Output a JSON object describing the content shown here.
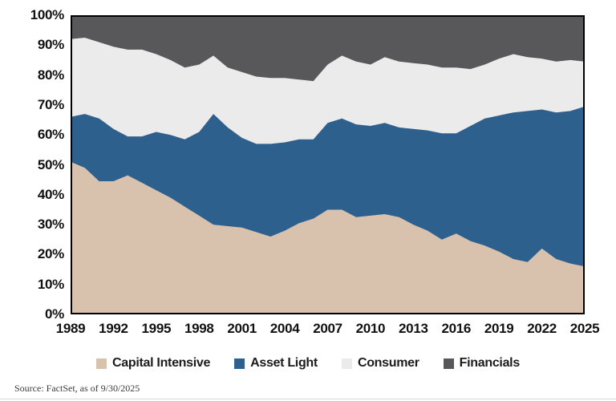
{
  "source_note": "Source: FactSet, as of 9/30/2025",
  "colors": {
    "capital_intensive": "#d8c2ae",
    "asset_light": "#2e608e",
    "consumer": "#ebebeb",
    "financials": "#58585a",
    "plot_border": "#000000",
    "axis_text": "#111111"
  },
  "legend": {
    "items": [
      {
        "label": "Capital Intensive",
        "color": "#d8c2ae"
      },
      {
        "label": "Asset Light",
        "color": "#2e608e"
      },
      {
        "label": "Consumer",
        "color": "#ebebeb"
      },
      {
        "label": "Financials",
        "color": "#58585a"
      }
    ]
  },
  "axis": {
    "y_tick_labels": [
      "0%",
      "10%",
      "20%",
      "30%",
      "40%",
      "50%",
      "60%",
      "70%",
      "80%",
      "90%",
      "100%"
    ],
    "x_tick_labels": [
      "1989",
      "1992",
      "1995",
      "1998",
      "2001",
      "2004",
      "2007",
      "2010",
      "2013",
      "2016",
      "2019",
      "2022",
      "2025"
    ]
  },
  "chart_data": {
    "type": "area",
    "stacked": true,
    "percent_stacked": true,
    "grid": false,
    "legend_position": "bottom",
    "ylim": [
      0,
      100
    ],
    "y_ticks": [
      0,
      10,
      20,
      30,
      40,
      50,
      60,
      70,
      80,
      90,
      100
    ],
    "x": [
      1989,
      1990,
      1991,
      1992,
      1993,
      1994,
      1995,
      1996,
      1997,
      1998,
      1999,
      2000,
      2001,
      2002,
      2003,
      2004,
      2005,
      2006,
      2007,
      2008,
      2009,
      2010,
      2011,
      2012,
      2013,
      2014,
      2015,
      2016,
      2017,
      2018,
      2019,
      2020,
      2021,
      2022,
      2023,
      2024,
      2025
    ],
    "x_tick_years": [
      1989,
      1992,
      1995,
      1998,
      2001,
      2004,
      2007,
      2010,
      2013,
      2016,
      2019,
      2022,
      2025
    ],
    "series": [
      {
        "name": "Capital Intensive",
        "color": "#d8c2ae",
        "values": [
          51,
          49,
          44.5,
          44.5,
          46.5,
          44,
          41.5,
          39,
          36,
          33,
          30,
          29.5,
          29,
          27.5,
          26,
          28,
          30.5,
          32,
          35,
          35,
          32.5,
          33,
          33.5,
          32.5,
          30,
          28,
          25,
          27,
          24.5,
          23,
          21,
          18.5,
          17.5,
          22,
          18.5,
          17,
          16
        ]
      },
      {
        "name": "Asset Light",
        "color": "#2e608e",
        "values": [
          15,
          18,
          21,
          17.5,
          13,
          15.5,
          19.5,
          21,
          22.5,
          28,
          37,
          33,
          30,
          29.5,
          31,
          29.5,
          28,
          26.5,
          29,
          30.5,
          31,
          30,
          30.5,
          30,
          32,
          33.5,
          35.5,
          33.5,
          38.5,
          42.5,
          45.5,
          49,
          50.5,
          46.5,
          49,
          51,
          53.5
        ]
      },
      {
        "name": "Consumer",
        "color": "#ebebeb",
        "values": [
          26,
          25.5,
          25.5,
          27.5,
          29,
          29,
          26,
          25,
          24,
          22.5,
          19.5,
          20,
          22,
          22.5,
          22,
          21.5,
          20,
          19.5,
          19.5,
          21,
          21,
          20.5,
          22,
          22,
          22,
          22,
          22,
          22,
          19,
          18,
          19,
          19.5,
          18,
          17,
          17,
          17,
          15
        ]
      },
      {
        "name": "Financials",
        "color": "#58585a",
        "values": [
          8,
          7.5,
          9,
          10.5,
          11.5,
          11.5,
          13,
          15,
          17.5,
          16.5,
          13.5,
          17.5,
          19,
          20.5,
          21,
          21,
          21.5,
          22,
          16.5,
          13.5,
          15.5,
          16.5,
          14,
          15.5,
          16,
          16.5,
          17.5,
          17.5,
          18,
          16.5,
          14.5,
          13,
          14,
          14.5,
          15.5,
          15,
          15.5
        ]
      }
    ]
  }
}
